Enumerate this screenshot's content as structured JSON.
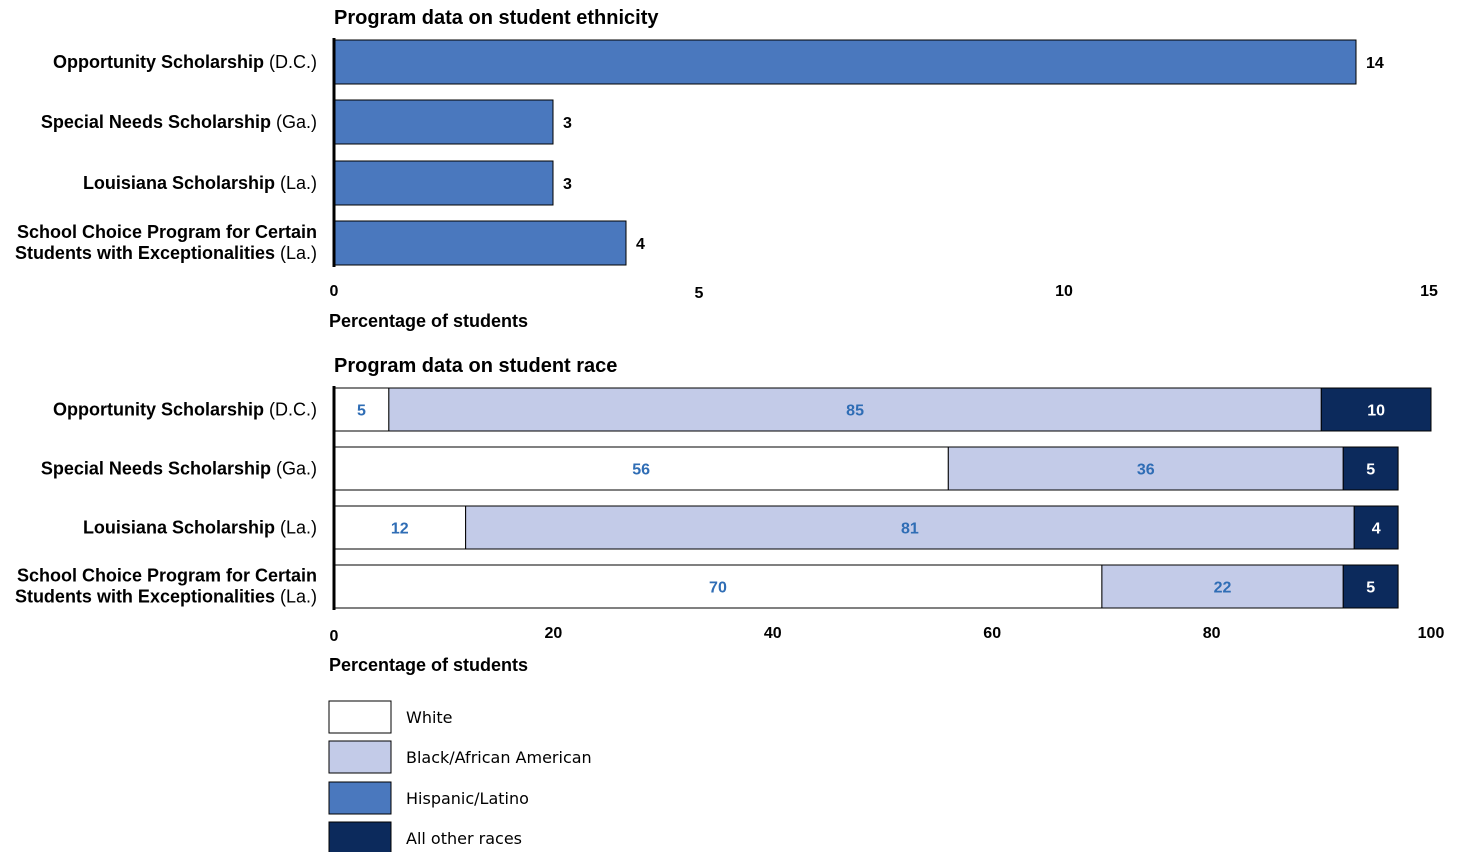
{
  "chart_data": [
    {
      "type": "bar",
      "orientation": "horizontal",
      "title": "Program data on student ethnicity",
      "categories": [
        {
          "bold": "Opportunity Scholarship",
          "normal": "(D.C.)"
        },
        {
          "bold": "Special Needs Scholarship",
          "normal": "(Ga.)"
        },
        {
          "bold": "Louisiana Scholarship",
          "normal": "(La.)"
        },
        {
          "bold": "School Choice Program for Certain",
          "bold2": "Students with Exceptionalities",
          "normal": "(La.)"
        }
      ],
      "values": [
        14,
        3,
        3,
        4
      ],
      "value_labels": [
        "14",
        "3",
        "3",
        "4"
      ],
      "xlabel": "Percentage of students",
      "xlim": [
        0,
        15
      ],
      "ticks": [
        0,
        5,
        10,
        15
      ],
      "tick_labels": [
        "0",
        "5",
        "10",
        "15"
      ],
      "bar_color": "#4a78be"
    },
    {
      "type": "bar",
      "orientation": "horizontal",
      "stacked": true,
      "title": "Program data on student race",
      "categories": [
        {
          "bold": "Opportunity Scholarship",
          "normal": "(D.C.)"
        },
        {
          "bold": "Special Needs Scholarship",
          "normal": "(Ga.)"
        },
        {
          "bold": "Louisiana Scholarship",
          "normal": "(La.)"
        },
        {
          "bold": "School Choice Program for Certain",
          "bold2": "Students with Exceptionalities",
          "normal": "(La.)"
        }
      ],
      "series": [
        {
          "name": "White",
          "values": [
            5,
            56,
            12,
            70
          ],
          "color": "#ffffff",
          "label_color": "#2f6db5"
        },
        {
          "name": "Black/African American",
          "values": [
            85,
            36,
            81,
            22
          ],
          "color": "#c3cbe8",
          "label_color": "#2f6db5"
        },
        {
          "name": "All other races",
          "values": [
            10,
            5,
            4,
            5
          ],
          "color": "#0c2a5c",
          "label_color": "#ffffff"
        }
      ],
      "xlabel": "Percentage of students",
      "xlim": [
        0,
        100
      ],
      "ticks": [
        0,
        20,
        40,
        60,
        80,
        100
      ],
      "tick_labels": [
        "0",
        "20",
        "40",
        "60",
        "80",
        "100"
      ]
    }
  ],
  "legend": [
    {
      "name": "White",
      "color": "#ffffff"
    },
    {
      "name": "Black/African American",
      "color": "#c3cbe8"
    },
    {
      "name": "Hispanic/Latino",
      "color": "#4a78be"
    },
    {
      "name": "All other races",
      "color": "#0c2a5c"
    }
  ]
}
